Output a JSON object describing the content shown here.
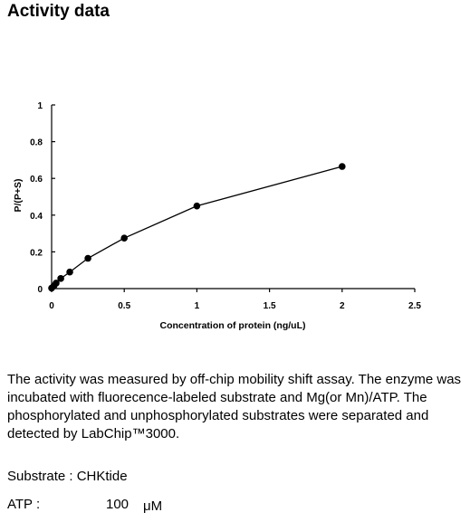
{
  "title": "Activity data",
  "chart_data": {
    "type": "line",
    "xlabel": "Concentration of protein (ng/uL)",
    "ylabel": "P/(P+S)",
    "xlim": [
      0,
      2.5
    ],
    "ylim": [
      0,
      1
    ],
    "x_ticks": [
      0,
      0.5,
      1,
      1.5,
      2,
      2.5
    ],
    "x_tick_labels": [
      "0",
      "0.5",
      "1",
      "1.5",
      "2",
      "2.5"
    ],
    "y_ticks": [
      0,
      0.2,
      0.4,
      0.6,
      0.8,
      1
    ],
    "y_tick_labels": [
      "0",
      "0.2",
      "0.4",
      "0.6",
      "0.8",
      "1"
    ],
    "grid": false,
    "marker": "circle",
    "series": [
      {
        "x": [
          0,
          0.016,
          0.031,
          0.063,
          0.125,
          0.25,
          0.5,
          1,
          2
        ],
        "y": [
          0.003,
          0.015,
          0.03,
          0.055,
          0.09,
          0.165,
          0.275,
          0.45,
          0.665
        ]
      }
    ]
  },
  "description": "The activity was measured by off-chip mobility shift assay. The enzyme was incubated with fluorecence-labeled  substrate and Mg(or Mn)/ATP. The phosphorylated and unphosphorylated substrates were separated and detected by LabChip™3000.",
  "substrate": "Substrate : CHKtide",
  "atp": {
    "label": "ATP :",
    "value": "100",
    "unit": "μM"
  },
  "colors": {
    "line": "#000000",
    "marker": "#000000"
  }
}
